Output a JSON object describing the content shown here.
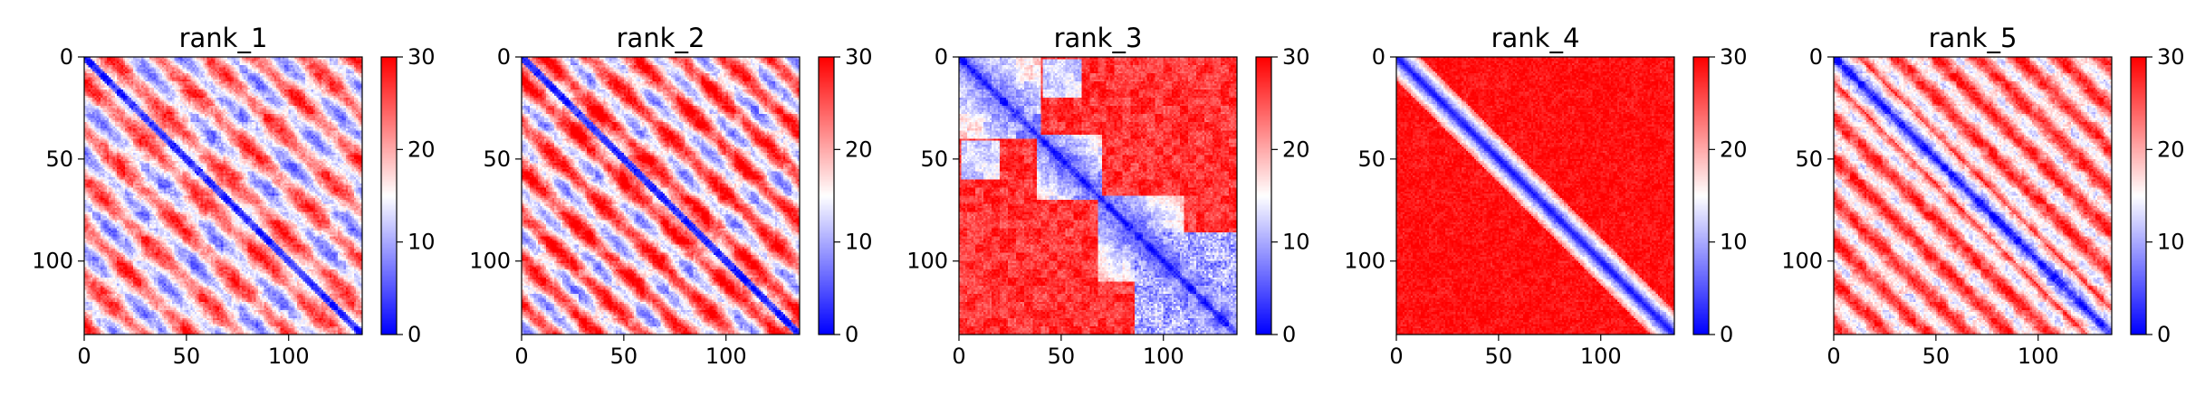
{
  "chart_data": [
    {
      "type": "heatmap",
      "title": "rank_1",
      "size": 136,
      "pattern": "rank1",
      "xticks": [
        0,
        50,
        100
      ],
      "yticks": [
        0,
        50,
        100
      ],
      "colorbar": {
        "range": [
          0,
          30
        ],
        "ticks": [
          0,
          10,
          20,
          30
        ],
        "colormap": "bwr"
      }
    },
    {
      "type": "heatmap",
      "title": "rank_2",
      "size": 136,
      "pattern": "rank2",
      "xticks": [
        0,
        50,
        100
      ],
      "yticks": [
        0,
        50,
        100
      ],
      "colorbar": {
        "range": [
          0,
          30
        ],
        "ticks": [
          0,
          10,
          20,
          30
        ],
        "colormap": "bwr"
      }
    },
    {
      "type": "heatmap",
      "title": "rank_3",
      "size": 136,
      "pattern": "rank3",
      "xticks": [
        0,
        50,
        100
      ],
      "yticks": [
        0,
        50,
        100
      ],
      "colorbar": {
        "range": [
          0,
          30
        ],
        "ticks": [
          0,
          10,
          20,
          30
        ],
        "colormap": "bwr"
      }
    },
    {
      "type": "heatmap",
      "title": "rank_4",
      "size": 136,
      "pattern": "rank4",
      "xticks": [
        0,
        50,
        100
      ],
      "yticks": [
        0,
        50,
        100
      ],
      "colorbar": {
        "range": [
          0,
          30
        ],
        "ticks": [
          0,
          10,
          20,
          30
        ],
        "colormap": "bwr"
      }
    },
    {
      "type": "heatmap",
      "title": "rank_5",
      "size": 136,
      "pattern": "rank5",
      "xticks": [
        0,
        50,
        100
      ],
      "yticks": [
        0,
        50,
        100
      ],
      "colorbar": {
        "range": [
          0,
          30
        ],
        "ticks": [
          0,
          10,
          20,
          30
        ],
        "colormap": "bwr"
      }
    }
  ],
  "colors": {
    "low": "#0000ff",
    "mid": "#ffffff",
    "high": "#ff0000"
  }
}
